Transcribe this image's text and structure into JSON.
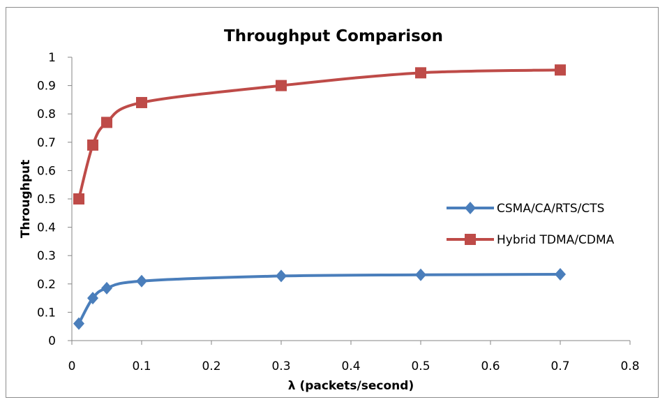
{
  "chart_data": {
    "type": "line",
    "title": "Throughput Comparison",
    "xlabel": "λ (packets/second)",
    "ylabel": "Throughput",
    "xlim": [
      0,
      0.8
    ],
    "ylim": [
      0,
      1
    ],
    "x_ticks": [
      "0",
      "0.1",
      "0.2",
      "0.3",
      "0.4",
      "0.5",
      "0.6",
      "0.7",
      "0.8"
    ],
    "y_ticks": [
      "0",
      "0.1",
      "0.2",
      "0.3",
      "0.4",
      "0.5",
      "0.6",
      "0.7",
      "0.8",
      "0.9",
      "1"
    ],
    "grid": false,
    "legend_position": "right",
    "series": [
      {
        "name": "CSMA/CA/RTS/CTS",
        "color": "#4a7ebb",
        "marker": "diamond",
        "x": [
          0.01,
          0.03,
          0.05,
          0.1,
          0.3,
          0.5,
          0.7
        ],
        "y": [
          0.06,
          0.15,
          0.185,
          0.21,
          0.228,
          0.232,
          0.234
        ]
      },
      {
        "name": "Hybrid TDMA/CDMA",
        "color": "#be4b48",
        "marker": "square",
        "x": [
          0.01,
          0.03,
          0.05,
          0.1,
          0.3,
          0.5,
          0.7
        ],
        "y": [
          0.5,
          0.69,
          0.77,
          0.84,
          0.9,
          0.945,
          0.955
        ]
      }
    ]
  }
}
